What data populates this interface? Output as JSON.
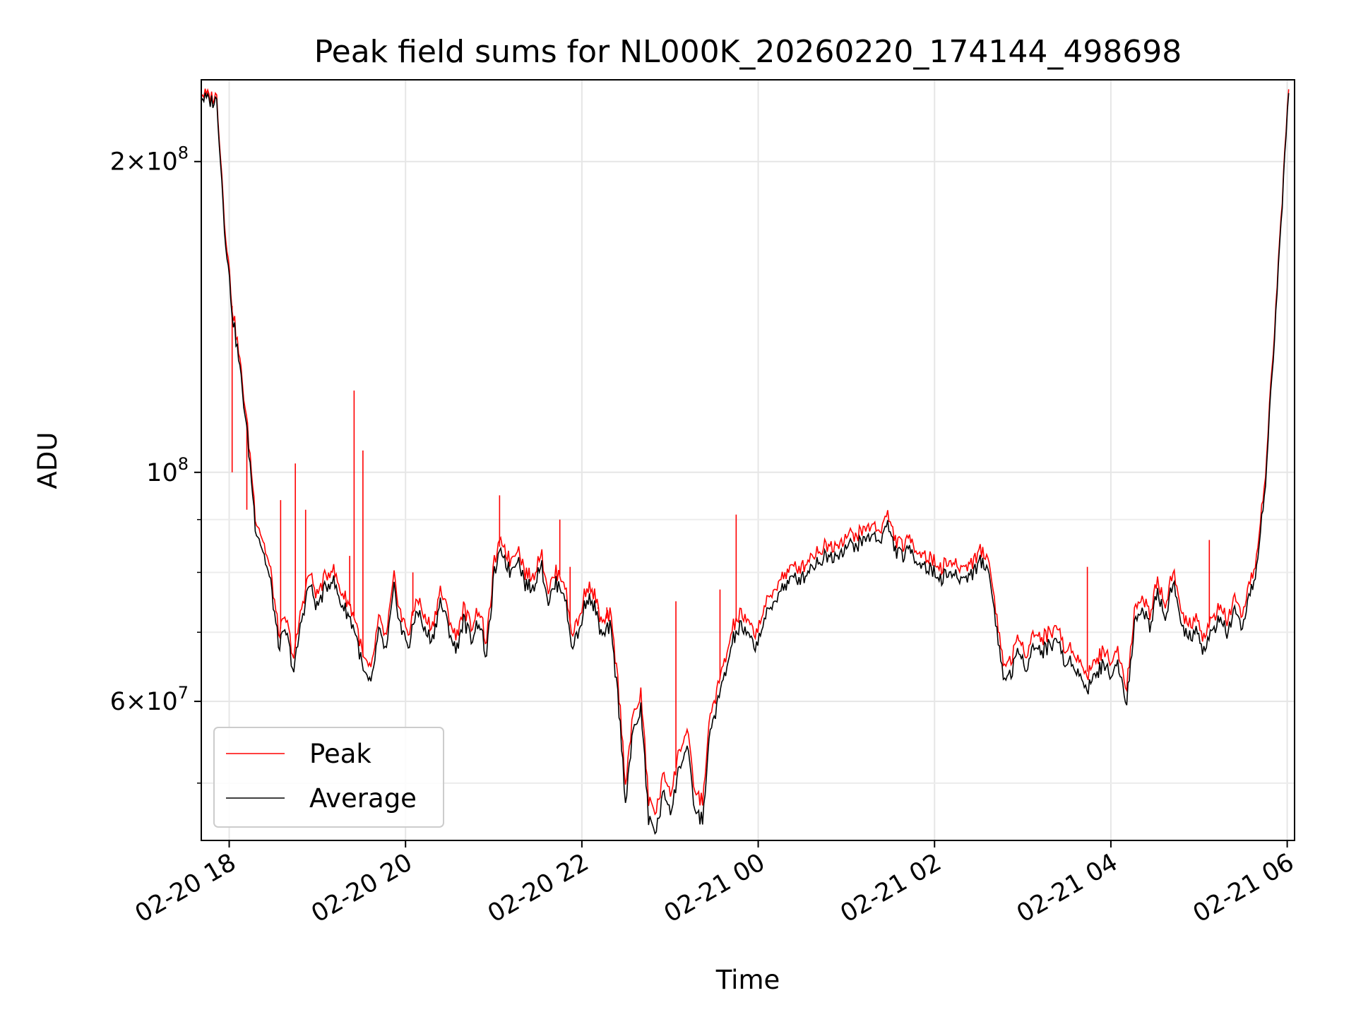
{
  "chart_data": {
    "type": "line",
    "title": "Peak field sums for NL000K_20260220_174144_498698",
    "xlabel": "Time",
    "ylabel": "ADU",
    "x_start": "02-20 17:41",
    "x_end": "02-21 06:01",
    "xlim": [
      "02-20 17:41",
      "02-21 06:05"
    ],
    "ylim": [
      44000000,
      240000000
    ],
    "yscale": "log",
    "grid": true,
    "legend": {
      "position": "lower-left",
      "entries": [
        "Peak",
        "Average"
      ]
    },
    "x_ticks": [
      "02-20 18",
      "02-20 20",
      "02-20 22",
      "02-21 00",
      "02-21 02",
      "02-21 04",
      "02-21 06"
    ],
    "y_ticks": [
      {
        "value": 60000000,
        "mantissa": "6",
        "exponent": "7"
      },
      {
        "value": 100000000,
        "mantissa": "",
        "exponent": "8"
      },
      {
        "value": 200000000,
        "mantissa": "2",
        "exponent": "8"
      }
    ],
    "y_minor_ticks": [
      50000000,
      70000000,
      80000000,
      90000000
    ],
    "series": [
      {
        "name": "Peak",
        "color": "#ff0000",
        "y": [
          233000000,
          231000000,
          231000000,
          176000000,
          145000000,
          128000000,
          110000000,
          91000000,
          86000000,
          80000000,
          70000000,
          72000000,
          66000000,
          74000000,
          80000000,
          76000000,
          79000000,
          81000000,
          77000000,
          75000000,
          72000000,
          66000000,
          64000000,
          72000000,
          69000000,
          79000000,
          72000000,
          70000000,
          76000000,
          72000000,
          71000000,
          77000000,
          73000000,
          69000000,
          74000000,
          71000000,
          74000000,
          68000000,
          82000000,
          86000000,
          82000000,
          85000000,
          80000000,
          79000000,
          84000000,
          77000000,
          80000000,
          79000000,
          70000000,
          72000000,
          78000000,
          76000000,
          71000000,
          73000000,
          63000000,
          50000000,
          58000000,
          61000000,
          48000000,
          47000000,
          51000000,
          49000000,
          54000000,
          56000000,
          49000000,
          48000000,
          58000000,
          62000000,
          66000000,
          71000000,
          73000000,
          71000000,
          70000000,
          74000000,
          76000000,
          79000000,
          80000000,
          81000000,
          81000000,
          83000000,
          84000000,
          85000000,
          85000000,
          86000000,
          87000000,
          87000000,
          88000000,
          89000000,
          88000000,
          91000000,
          86000000,
          85000000,
          86000000,
          84000000,
          83000000,
          82000000,
          81000000,
          82000000,
          81000000,
          81000000,
          82000000,
          84000000,
          83000000,
          74000000,
          65000000,
          66000000,
          69000000,
          67000000,
          70000000,
          69000000,
          70000000,
          71000000,
          67000000,
          68000000,
          65000000,
          64000000,
          66000000,
          67000000,
          66000000,
          67000000,
          62000000,
          73000000,
          76000000,
          73000000,
          79000000,
          74000000,
          81000000,
          73000000,
          71000000,
          72000000,
          69000000,
          72000000,
          74000000,
          72000000,
          75000000,
          72000000,
          78000000,
          84000000,
          100000000,
          130000000,
          175000000,
          235000000
        ],
        "spikes": [
          {
            "x": "02-20 18:02",
            "y": 100000000
          },
          {
            "x": "02-20 18:12",
            "y": 92000000
          },
          {
            "x": "02-20 18:35",
            "y": 94000000
          },
          {
            "x": "02-20 18:45",
            "y": 102000000
          },
          {
            "x": "02-20 18:52",
            "y": 92000000
          },
          {
            "x": "02-20 19:22",
            "y": 83000000
          },
          {
            "x": "02-20 19:25",
            "y": 120000000
          },
          {
            "x": "02-20 19:31",
            "y": 105000000
          },
          {
            "x": "02-20 20:05",
            "y": 80000000
          },
          {
            "x": "02-20 21:04",
            "y": 95000000
          },
          {
            "x": "02-20 21:45",
            "y": 90000000
          },
          {
            "x": "02-20 21:52",
            "y": 81000000
          },
          {
            "x": "02-20 22:11",
            "y": 74000000
          },
          {
            "x": "02-20 22:17",
            "y": 74000000
          },
          {
            "x": "02-20 23:04",
            "y": 75000000
          },
          {
            "x": "02-20 23:34",
            "y": 77000000
          },
          {
            "x": "02-20 23:45",
            "y": 91000000
          },
          {
            "x": "02-21 03:44",
            "y": 81000000
          },
          {
            "x": "02-21 05:07",
            "y": 86000000
          }
        ]
      },
      {
        "name": "Average",
        "color": "#000000",
        "y": [
          231000000,
          229000000,
          229000000,
          173000000,
          143000000,
          126000000,
          108000000,
          89000000,
          84000000,
          78000000,
          68000000,
          70000000,
          64000000,
          72000000,
          78000000,
          74000000,
          77000000,
          79000000,
          75000000,
          73000000,
          70000000,
          64000000,
          62000000,
          70000000,
          67000000,
          77000000,
          70000000,
          68000000,
          74000000,
          70000000,
          69000000,
          75000000,
          71000000,
          67000000,
          72000000,
          69000000,
          72000000,
          66000000,
          80000000,
          84000000,
          80000000,
          83000000,
          78000000,
          77000000,
          82000000,
          75000000,
          78000000,
          77000000,
          68000000,
          70000000,
          76000000,
          74000000,
          69000000,
          71000000,
          61000000,
          48000000,
          56000000,
          59000000,
          46000000,
          45000000,
          49000000,
          47000000,
          52000000,
          54000000,
          47000000,
          46000000,
          56000000,
          60000000,
          64000000,
          69000000,
          71000000,
          69000000,
          68000000,
          72000000,
          74000000,
          77000000,
          78000000,
          79000000,
          79000000,
          81000000,
          82000000,
          83000000,
          83000000,
          84000000,
          85000000,
          85000000,
          86000000,
          87000000,
          86000000,
          89000000,
          84000000,
          83000000,
          84000000,
          82000000,
          81000000,
          80000000,
          79000000,
          80000000,
          79000000,
          79000000,
          80000000,
          82000000,
          81000000,
          72000000,
          63000000,
          64000000,
          67000000,
          65000000,
          68000000,
          67000000,
          68000000,
          69000000,
          65000000,
          66000000,
          63000000,
          62000000,
          64000000,
          65000000,
          64000000,
          65000000,
          60000000,
          71000000,
          74000000,
          71000000,
          77000000,
          72000000,
          79000000,
          71000000,
          69000000,
          70000000,
          67000000,
          70000000,
          72000000,
          70000000,
          73000000,
          70000000,
          76000000,
          82000000,
          98000000,
          128000000,
          173000000,
          233000000
        ]
      }
    ]
  }
}
